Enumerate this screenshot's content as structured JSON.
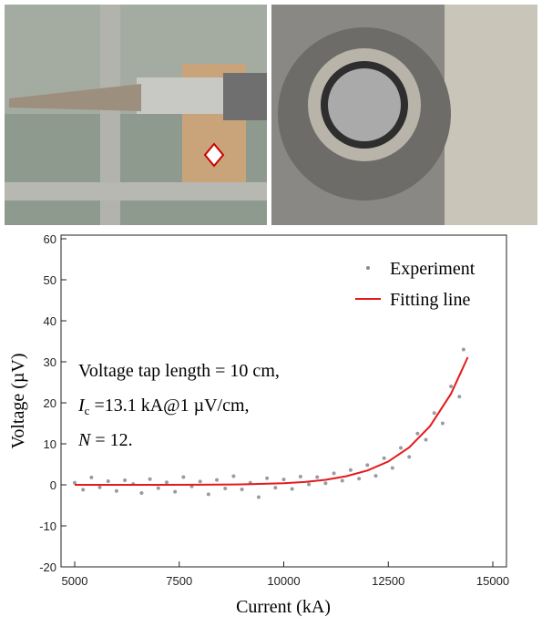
{
  "chart_data": {
    "type": "scatter",
    "xlabel": "Current (kA)",
    "ylabel": "Voltage (µV)",
    "xlim": [
      5000,
      15000
    ],
    "xticks": [
      5000,
      7500,
      10000,
      12500,
      15000
    ],
    "ylim": [
      -20,
      60
    ],
    "yticks": [
      -20,
      -10,
      0,
      10,
      20,
      30,
      40,
      50,
      60
    ],
    "legend": "upper-right",
    "annotation": {
      "line1": "Voltage tap length = 10 cm,",
      "line2_symbol": "I",
      "line2_subscript": "c",
      "line2_rest": " =13.1 kA@1 µV/cm,",
      "line3_symbol": "N",
      "line3_rest": " = 12."
    },
    "series": [
      {
        "name": "Experiment",
        "type": "scatter",
        "color": "#8a8a8a",
        "x": [
          5000,
          5200,
          5400,
          5600,
          5800,
          6000,
          6200,
          6400,
          6600,
          6800,
          7000,
          7200,
          7400,
          7600,
          7800,
          8000,
          8200,
          8400,
          8600,
          8800,
          9000,
          9200,
          9400,
          9600,
          9800,
          10000,
          10200,
          10400,
          10600,
          10800,
          11000,
          11200,
          11400,
          11600,
          11800,
          12000,
          12200,
          12400,
          12600,
          12800,
          13000,
          13200,
          13400,
          13600,
          13800,
          14000,
          14200,
          14300
        ],
        "values": [
          0.5,
          -1.2,
          1.8,
          -0.6,
          0.9,
          -1.5,
          1.1,
          0.2,
          -2.0,
          1.4,
          -0.8,
          0.6,
          -1.7,
          1.9,
          -0.4,
          0.8,
          -2.3,
          1.2,
          -0.9,
          2.1,
          -1.1,
          0.5,
          -3.0,
          1.6,
          -0.7,
          1.3,
          -1.0,
          2.0,
          0.1,
          1.9,
          0.4,
          2.8,
          1.0,
          3.6,
          1.5,
          4.8,
          2.2,
          6.5,
          4.1,
          9.0,
          6.8,
          12.5,
          11.0,
          17.5,
          15.0,
          24.0,
          21.5,
          33.0
        ]
      },
      {
        "name": "Fitting line",
        "type": "line",
        "color": "#e41a1c",
        "x": [
          5000,
          6000,
          7000,
          8000,
          9000,
          10000,
          10500,
          11000,
          11500,
          12000,
          12500,
          13000,
          13500,
          14000,
          14400
        ],
        "values": [
          0,
          0,
          0.01,
          0.03,
          0.11,
          0.39,
          0.7,
          1.23,
          2.1,
          3.5,
          5.7,
          9.1,
          14.3,
          22.2,
          31.1
        ]
      }
    ]
  }
}
